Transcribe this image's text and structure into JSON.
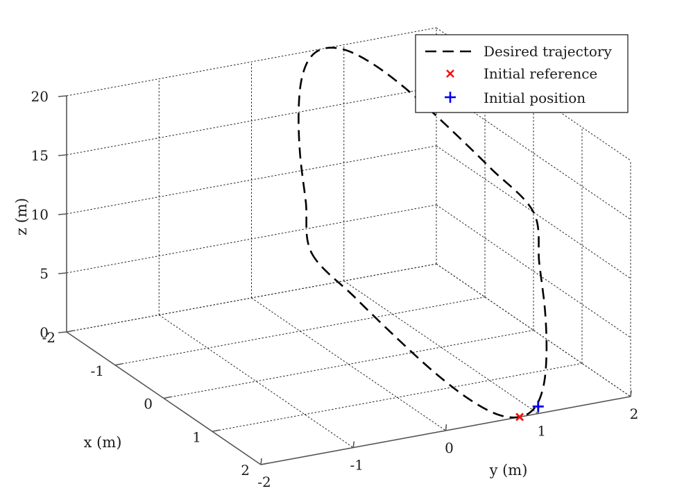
{
  "chart_data": {
    "type": "line3d",
    "title": "",
    "xlabel": "x (m)",
    "ylabel": "y (m)",
    "zlabel": "z (m)",
    "xlim": [
      -2,
      2
    ],
    "ylim": [
      -2,
      2
    ],
    "zlim": [
      0,
      20
    ],
    "x_ticks": [
      "-2",
      "-1",
      "0",
      "1",
      "2"
    ],
    "y_ticks": [
      "-2",
      "-1",
      "0",
      "1",
      "2"
    ],
    "z_ticks": [
      "0",
      "5",
      "10",
      "15",
      "20"
    ],
    "grid": true,
    "legend_position": "top-right",
    "series": [
      {
        "name": "Desired trajectory",
        "style": "dashed",
        "color": "#000000",
        "x": [
          0.0,
          0.5,
          1.0,
          1.41,
          1.73,
          1.93,
          2.0,
          1.93,
          1.73,
          1.41,
          1.0,
          0.5,
          0.0,
          -0.5,
          -1.0,
          -1.41,
          -1.73,
          -1.93,
          -2.0,
          -1.93,
          -1.73,
          -1.41,
          -1.0,
          -0.5,
          0.0
        ],
        "y": [
          -0.4,
          -0.2,
          0.0,
          0.2,
          0.4,
          0.6,
          0.8,
          1.0,
          1.2,
          1.4,
          1.6,
          1.8,
          2.0,
          1.8,
          1.6,
          1.4,
          1.2,
          1.0,
          0.8,
          0.6,
          0.4,
          0.2,
          0.0,
          -0.2,
          -0.4
        ],
        "z": [
          10.0,
          7.4,
          5.0,
          2.9,
          1.3,
          0.3,
          0.0,
          0.3,
          1.3,
          2.9,
          5.0,
          7.4,
          10.0,
          12.6,
          15.0,
          17.1,
          18.7,
          19.7,
          20.0,
          19.7,
          18.7,
          17.1,
          15.0,
          12.6,
          10.0
        ]
      },
      {
        "name": "Initial reference",
        "marker": "x",
        "color": "#ee1111",
        "x": [
          2.0
        ],
        "y": [
          0.8
        ],
        "z": [
          0.0
        ]
      },
      {
        "name": "Initial position",
        "marker": "+",
        "color": "#0000ee",
        "x": [
          2.0
        ],
        "y": [
          1.0
        ],
        "z": [
          0.6
        ]
      }
    ]
  }
}
